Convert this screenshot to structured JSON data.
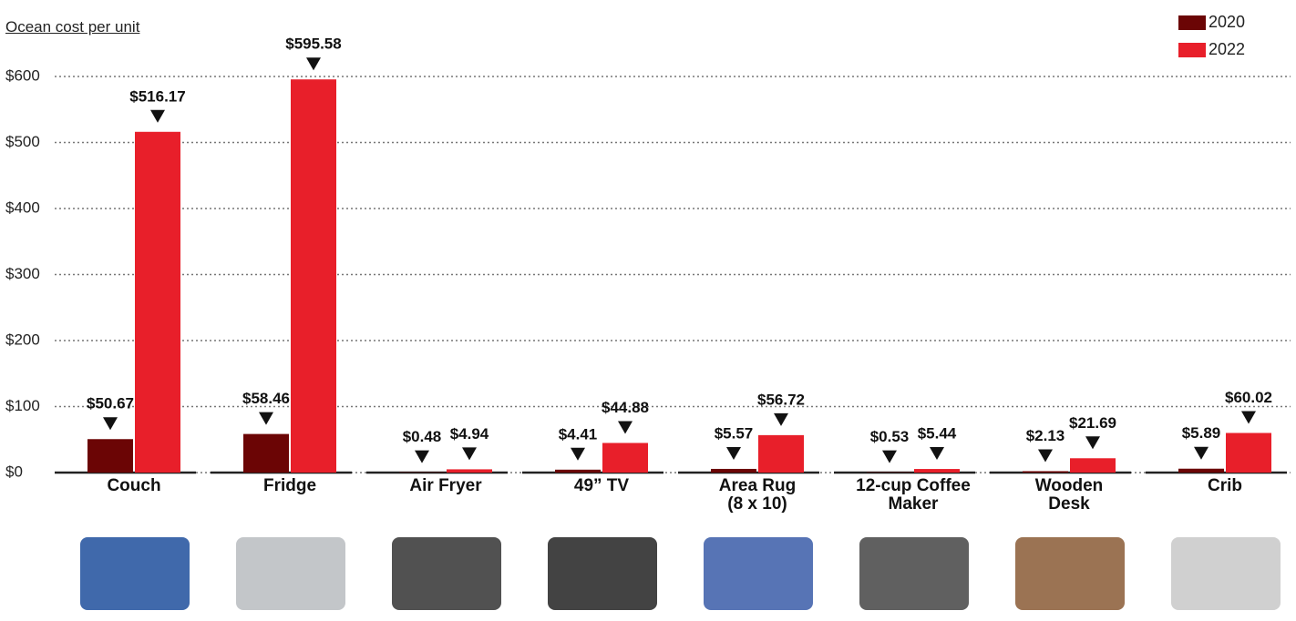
{
  "chart_data": {
    "type": "bar",
    "y_axis_label": "Ocean cost per unit",
    "categories": [
      "Couch",
      "Fridge",
      "Air Fryer",
      "49” TV",
      "Area Rug\n(8 x 10)",
      "12-cup Coffee\nMaker",
      "Wooden\nDesk",
      "Crib"
    ],
    "series": [
      {
        "name": "2020",
        "color": "#6b0505",
        "values": [
          50.67,
          58.46,
          0.48,
          4.41,
          5.57,
          0.53,
          2.13,
          5.89
        ],
        "value_labels": [
          "$50.67",
          "$58.46",
          "$0.48",
          "$4.41",
          "$5.57",
          "$0.53",
          "$2.13",
          "$5.89"
        ]
      },
      {
        "name": "2022",
        "color": "#e81f2a",
        "values": [
          516.17,
          595.58,
          4.94,
          44.88,
          56.72,
          5.44,
          21.69,
          60.02
        ],
        "value_labels": [
          "$516.17",
          "$595.58",
          "$4.94",
          "$44.88",
          "$56.72",
          "$5.44",
          "$21.69",
          "$60.02"
        ]
      }
    ],
    "ylim": [
      0,
      600
    ],
    "yticks": [
      {
        "value": 0,
        "label": "$0"
      },
      {
        "value": 100,
        "label": "$100"
      },
      {
        "value": 200,
        "label": "$200"
      },
      {
        "value": 300,
        "label": "$300"
      },
      {
        "value": 400,
        "label": "$400"
      },
      {
        "value": 500,
        "label": "$500"
      },
      {
        "value": 600,
        "label": "$600"
      }
    ],
    "grid": true,
    "legend": "top-right"
  }
}
